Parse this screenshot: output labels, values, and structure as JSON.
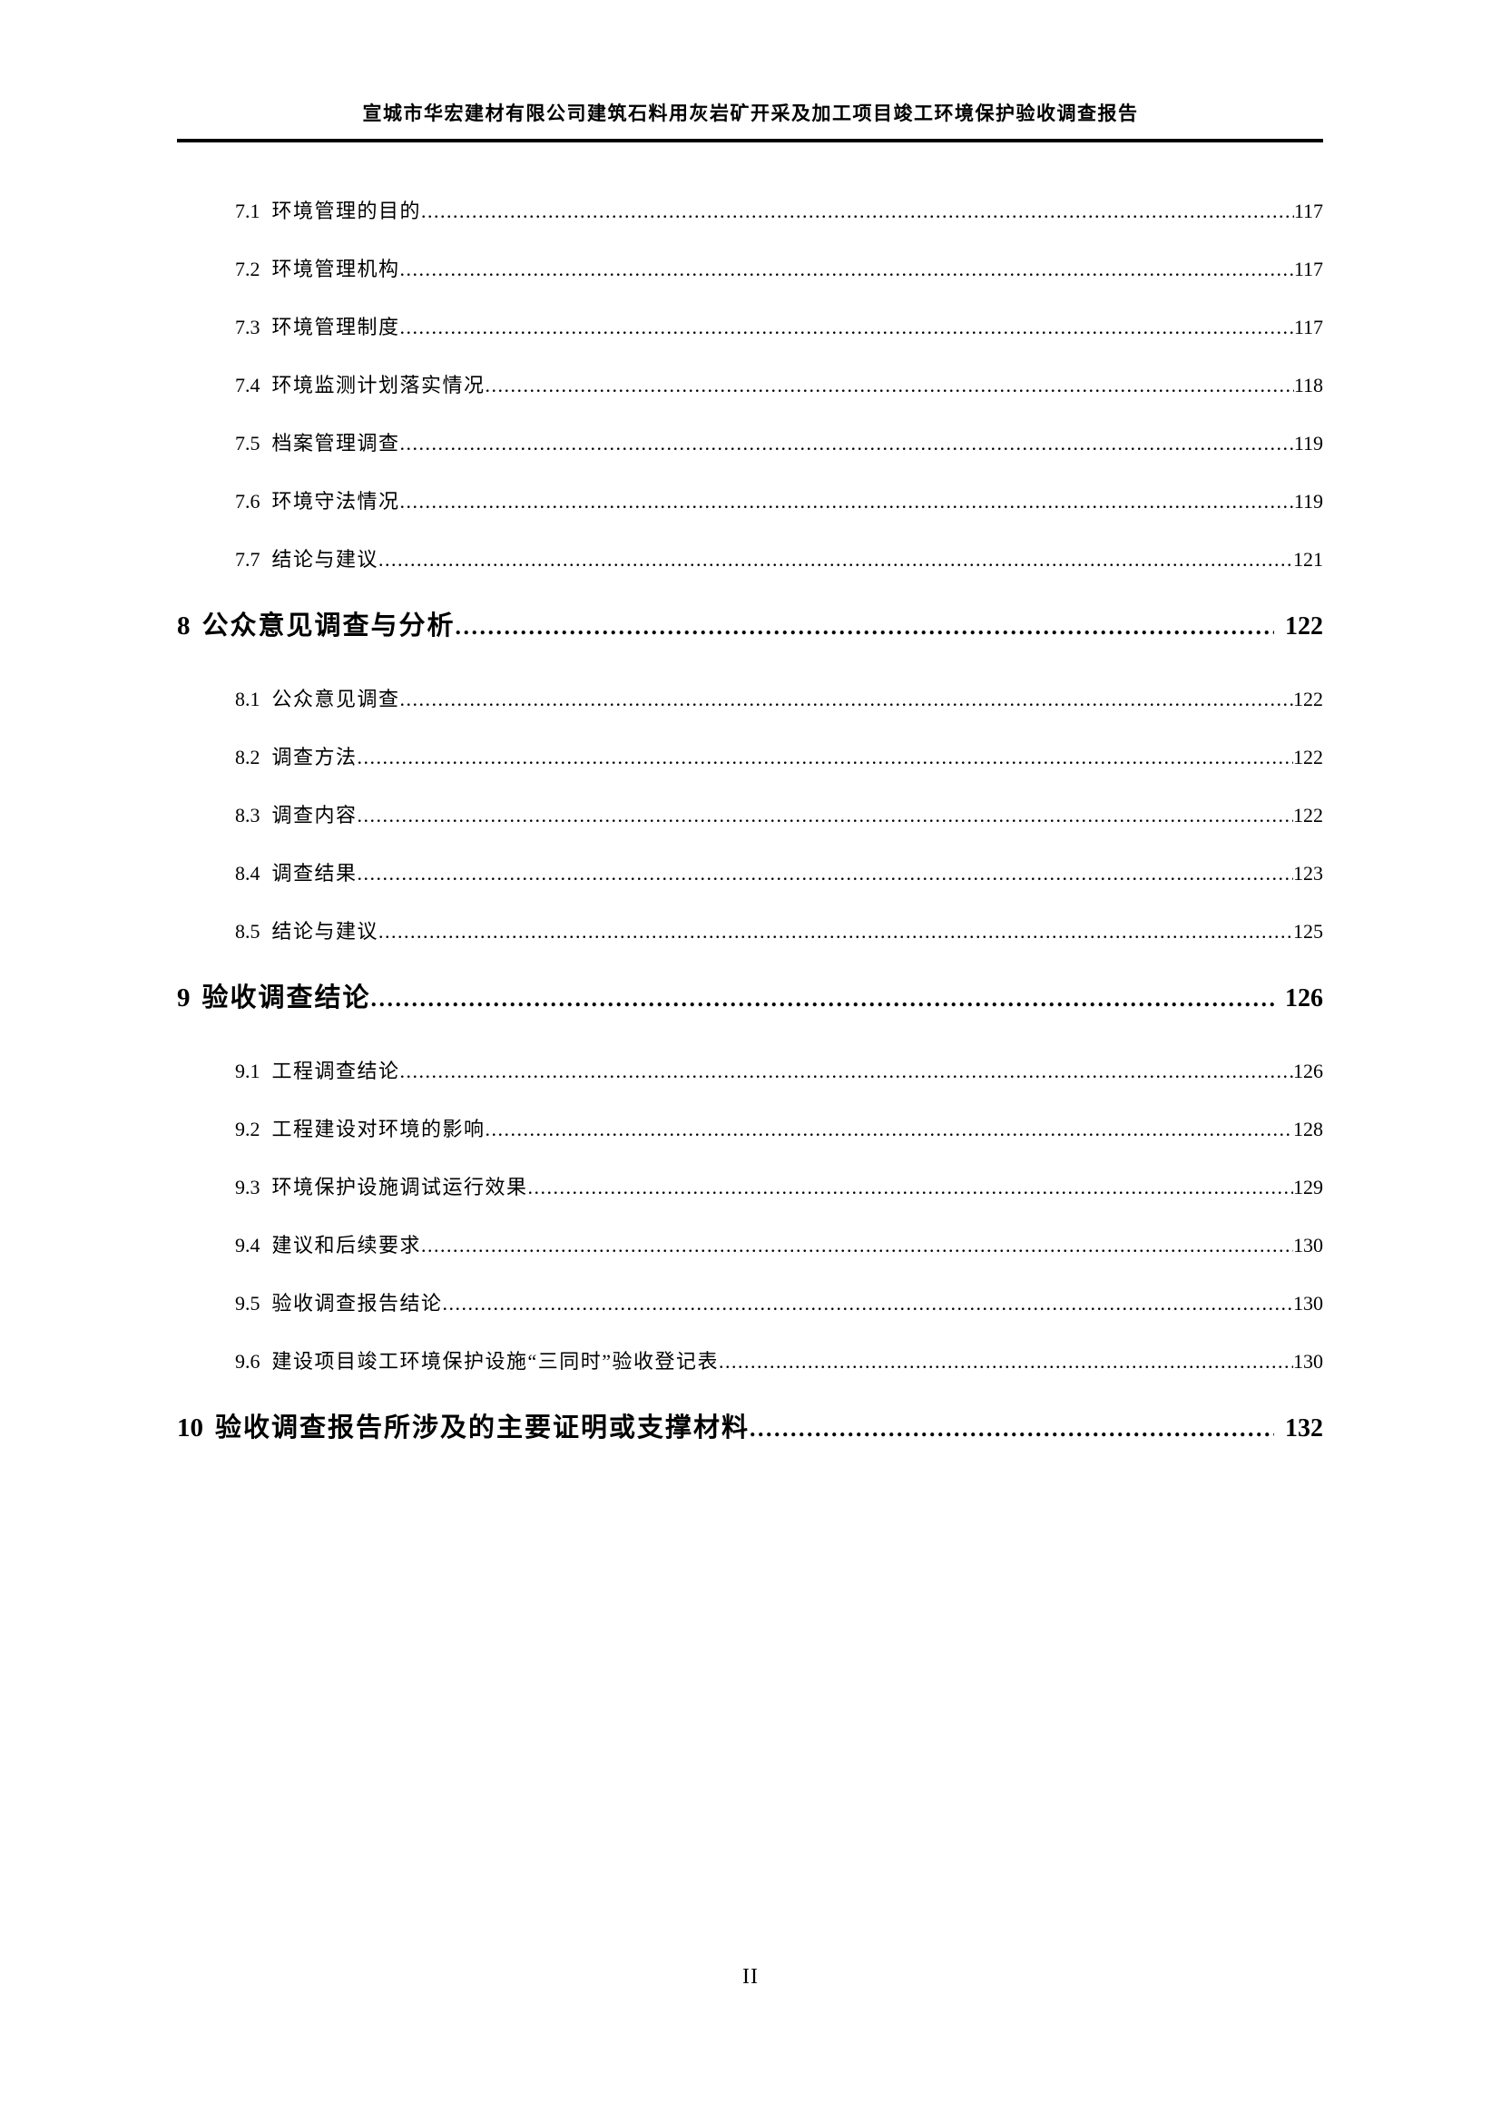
{
  "page": {
    "header": "宣城市华宏建材有限公司建筑石料用灰岩矿开采及加工项目竣工环境保护验收调查报告",
    "footer_page_number": "II"
  },
  "colors": {
    "text": "#000000",
    "background": "#ffffff",
    "rule": "#000000"
  },
  "toc": {
    "entries": [
      {
        "num": "7.1",
        "title": "环境管理的目的",
        "page": "117",
        "level": 2
      },
      {
        "num": "7.2",
        "title": "环境管理机构",
        "page": "117",
        "level": 2
      },
      {
        "num": "7.3",
        "title": "环境管理制度",
        "page": "117",
        "level": 2
      },
      {
        "num": "7.4",
        "title": "环境监测计划落实情况",
        "page": "118",
        "level": 2
      },
      {
        "num": "7.5",
        "title": "档案管理调查",
        "page": "119",
        "level": 2
      },
      {
        "num": "7.6",
        "title": "环境守法情况",
        "page": "119",
        "level": 2
      },
      {
        "num": "7.7",
        "title": "结论与建议",
        "page": "121",
        "level": 2
      },
      {
        "num": "8",
        "title": "公众意见调查与分析",
        "page": "122",
        "level": 1
      },
      {
        "num": "8.1",
        "title": "公众意见调查",
        "page": "122",
        "level": 2
      },
      {
        "num": "8.2",
        "title": "调查方法",
        "page": "122",
        "level": 2
      },
      {
        "num": "8.3",
        "title": "调查内容",
        "page": "122",
        "level": 2
      },
      {
        "num": "8.4",
        "title": "调查结果",
        "page": "123",
        "level": 2
      },
      {
        "num": "8.5",
        "title": "结论与建议",
        "page": "125",
        "level": 2
      },
      {
        "num": "9",
        "title": "验收调查结论",
        "page": "126",
        "level": 1
      },
      {
        "num": "9.1",
        "title": "工程调查结论",
        "page": "126",
        "level": 2
      },
      {
        "num": "9.2",
        "title": "工程建设对环境的影响",
        "page": "128",
        "level": 2
      },
      {
        "num": "9.3",
        "title": "环境保护设施调试运行效果",
        "page": "129",
        "level": 2
      },
      {
        "num": "9.4",
        "title": "建议和后续要求",
        "page": "130",
        "level": 2
      },
      {
        "num": "9.5",
        "title": "验收调查报告结论",
        "page": "130",
        "level": 2
      },
      {
        "num": "9.6",
        "title": "建设项目竣工环境保护设施“三同时”验收登记表",
        "page": "130",
        "level": 2
      },
      {
        "num": "10",
        "title": "验收调查报告所涉及的主要证明或支撑材料",
        "page": "132",
        "level": 1
      }
    ]
  }
}
